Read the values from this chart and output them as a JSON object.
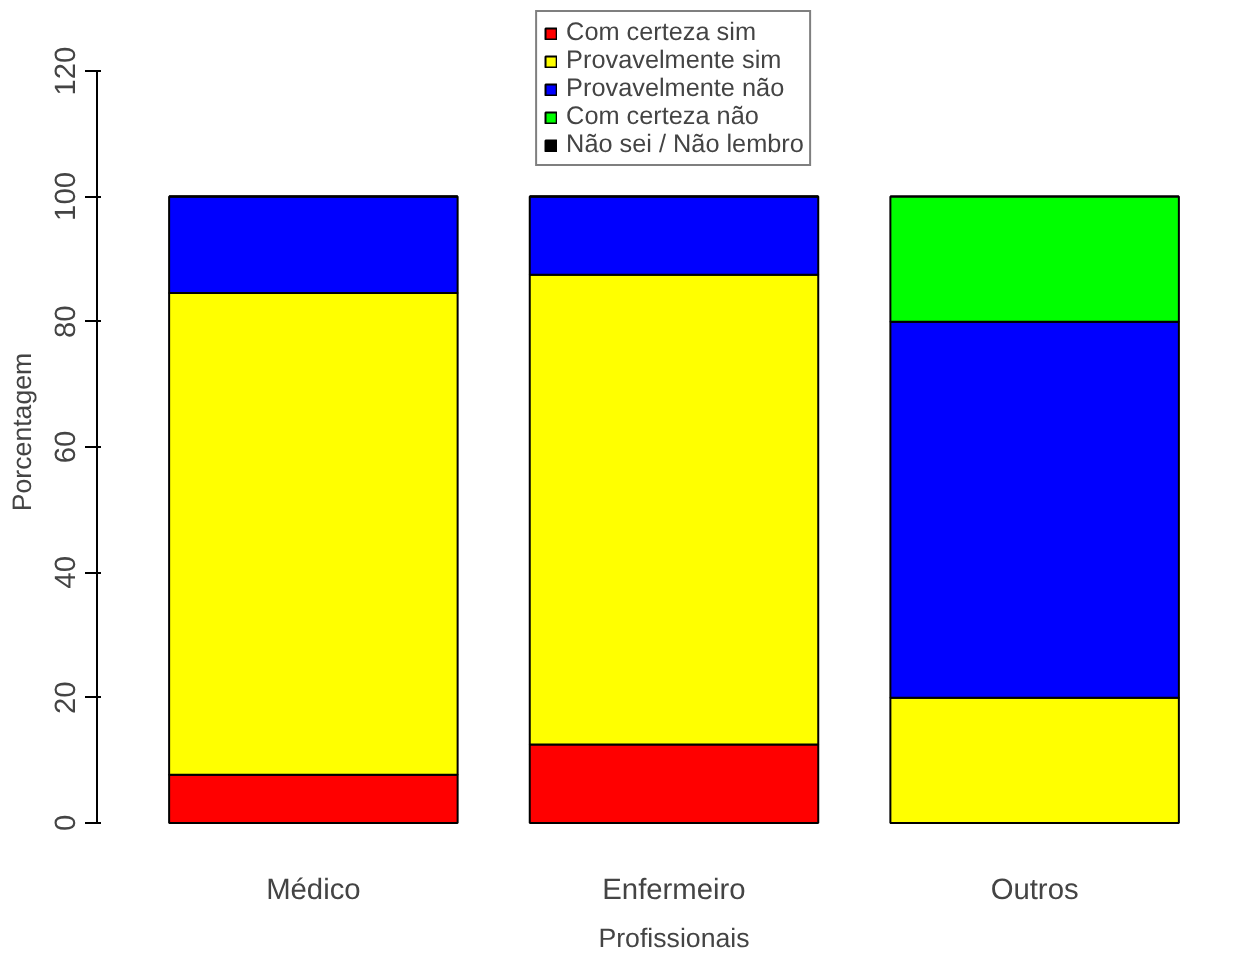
{
  "chart_data": {
    "type": "bar",
    "stacked": true,
    "xlabel": "Profissionais",
    "ylabel": "Porcentagem",
    "categories": [
      "Médico",
      "Enfermeiro",
      "Outros"
    ],
    "series": [
      {
        "name": "Com certeza sim",
        "color": "#ff0000",
        "values": [
          7.7,
          12.5,
          0
        ]
      },
      {
        "name": "Provavelmente sim",
        "color": "#ffff00",
        "values": [
          76.9,
          75,
          20
        ]
      },
      {
        "name": "Provavelmente não",
        "color": "#0000ff",
        "values": [
          15.4,
          12.5,
          60
        ]
      },
      {
        "name": "Com certeza não",
        "color": "#00ff00",
        "values": [
          0,
          0,
          20
        ]
      },
      {
        "name": "Não sei / Não lembro",
        "color": "#000000",
        "values": [
          0,
          0,
          0
        ]
      }
    ],
    "ylim": [
      0,
      120
    ],
    "yticks": [
      0,
      20,
      40,
      60,
      80,
      100,
      120
    ],
    "grid": false,
    "legend": "top"
  }
}
